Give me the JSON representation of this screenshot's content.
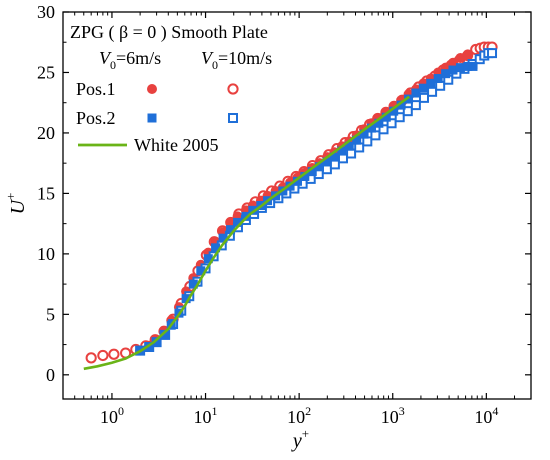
{
  "chart_data": {
    "type": "scatter",
    "xscale": "log",
    "xlim": [
      0.3,
      30000
    ],
    "ylim": [
      -2,
      30
    ],
    "xlabel": "y+",
    "ylabel": "U+",
    "x_ticks": [
      1,
      10,
      100,
      1000,
      10000
    ],
    "x_tick_labels": [
      "10^0",
      "10^1",
      "10^2",
      "10^3",
      "10^4"
    ],
    "y_ticks": [
      0,
      5,
      10,
      15,
      20,
      25,
      30
    ],
    "y_tick_labels": [
      "0",
      "5",
      "10",
      "15",
      "20",
      "25",
      "30"
    ],
    "grid": false,
    "legend_position": "top-left",
    "legend": {
      "title_line1": "ZPG ( β = 0 ) Smooth Plate",
      "col_6": "V0=6m/s",
      "col_10": "V0=10m/s",
      "row_pos1": "Pos.1",
      "row_pos2": "Pos.2",
      "line_label": "White 2005"
    },
    "colors": {
      "pos1": "#e8413f",
      "pos2": "#1f6fd8",
      "white2005": "#6ab417"
    },
    "series": [
      {
        "name": "Pos.1 V0=6m/s",
        "marker": "filled-circle",
        "color": "#e8413f",
        "x": [
          2.0,
          2.5,
          3.0,
          3.6,
          4.3,
          5.2,
          6.2,
          7.4,
          8.9,
          10.7,
          12.8,
          15.4,
          18.5,
          22,
          27,
          32,
          39,
          46,
          56,
          67,
          80,
          96,
          115,
          138,
          165,
          199,
          238,
          286,
          343,
          412,
          494,
          593,
          711,
          853,
          1024,
          1229,
          1475,
          1770,
          2124,
          2548,
          3058,
          3670,
          4404,
          5285,
          6342
        ],
        "y": [
          2.0,
          2.4,
          2.9,
          3.6,
          4.5,
          5.6,
          6.9,
          8.0,
          9.1,
          10.1,
          11.0,
          11.8,
          12.5,
          13.1,
          13.6,
          14.0,
          14.4,
          14.8,
          15.2,
          15.5,
          15.9,
          16.3,
          16.7,
          17.1,
          17.5,
          18.0,
          18.4,
          18.9,
          19.3,
          19.8,
          20.3,
          20.8,
          21.2,
          21.7,
          22.2,
          22.7,
          23.2,
          23.6,
          24.1,
          24.5,
          25.0,
          25.4,
          25.8,
          26.2,
          26.5
        ]
      },
      {
        "name": "Pos.1 V0=10m/s",
        "marker": "open-circle",
        "color": "#e8413f",
        "x": [
          0.6,
          0.8,
          1.05,
          1.4,
          1.8,
          2.3,
          2.9,
          3.6,
          4.5,
          5.5,
          6.8,
          8.3,
          10.2,
          12.4,
          15.2,
          18.6,
          22.7,
          27.8,
          34,
          41.5,
          50.8,
          62.1,
          75.9,
          92.8,
          113,
          139,
          170,
          207,
          253,
          310,
          379,
          463,
          566,
          692,
          846,
          1034,
          1264,
          1545,
          1889,
          2309,
          2823,
          3451,
          4219,
          5157,
          6304,
          7706,
          8600,
          9500,
          10500,
          11500
        ],
        "y": [
          1.4,
          1.6,
          1.7,
          1.8,
          2.1,
          2.4,
          2.9,
          3.6,
          4.6,
          5.9,
          7.3,
          8.6,
          9.9,
          11.0,
          11.9,
          12.6,
          13.3,
          13.8,
          14.3,
          14.8,
          15.2,
          15.6,
          16.0,
          16.4,
          16.8,
          17.3,
          17.7,
          18.2,
          18.7,
          19.2,
          19.7,
          20.2,
          20.7,
          21.2,
          21.7,
          22.2,
          22.7,
          23.3,
          23.8,
          24.3,
          24.7,
          25.2,
          25.6,
          26.0,
          26.4,
          26.9,
          27.0,
          27.1,
          27.1,
          27.1
        ]
      },
      {
        "name": "Pos.2 V0=6m/s",
        "marker": "filled-square",
        "color": "#1f6fd8",
        "x": [
          2.0,
          2.5,
          3.0,
          3.6,
          4.3,
          5.2,
          6.2,
          7.4,
          8.9,
          10.7,
          12.8,
          15.4,
          18.5,
          22,
          27,
          32,
          39,
          46,
          56,
          67,
          80,
          96,
          115,
          138,
          165,
          199,
          238,
          286,
          343,
          412,
          494,
          593,
          711,
          853,
          1024,
          1229,
          1475,
          1770,
          2124,
          2548,
          3058,
          3670,
          4404,
          5285,
          6342,
          7200
        ],
        "y": [
          2.0,
          2.3,
          2.7,
          3.3,
          4.1,
          5.1,
          6.3,
          7.5,
          8.6,
          9.6,
          10.5,
          11.3,
          12.0,
          12.6,
          13.1,
          13.6,
          14.0,
          14.4,
          14.8,
          15.2,
          15.6,
          16.0,
          16.4,
          16.8,
          17.2,
          17.6,
          18.0,
          18.5,
          18.9,
          19.4,
          19.9,
          20.4,
          20.8,
          21.3,
          21.8,
          22.3,
          22.8,
          23.3,
          23.7,
          24.1,
          24.5,
          24.9,
          25.2,
          25.4,
          25.5,
          25.5
        ]
      },
      {
        "name": "Pos.2 V0=10m/s",
        "marker": "open-square",
        "color": "#1f6fd8",
        "x": [
          2.0,
          2.5,
          3.0,
          3.7,
          4.5,
          5.5,
          6.7,
          8.2,
          10.0,
          12.2,
          14.9,
          18.2,
          22.2,
          27,
          33,
          40,
          49,
          60,
          73,
          89,
          109,
          133,
          162,
          198,
          241,
          294,
          359,
          438,
          535,
          653,
          797,
          972,
          1187,
          1448,
          1767,
          2157,
          2632,
          3212,
          3920,
          4784,
          5838,
          7125,
          8500,
          9500,
          10500,
          11500
        ],
        "y": [
          2.0,
          2.3,
          2.7,
          3.3,
          4.2,
          5.3,
          6.5,
          7.7,
          8.8,
          9.8,
          10.7,
          11.5,
          12.2,
          12.8,
          13.3,
          13.8,
          14.2,
          14.6,
          15.0,
          15.4,
          15.8,
          16.2,
          16.6,
          17.0,
          17.4,
          17.9,
          18.3,
          18.8,
          19.3,
          19.8,
          20.3,
          20.8,
          21.3,
          21.8,
          22.3,
          22.9,
          23.4,
          23.9,
          24.4,
          24.9,
          25.3,
          25.7,
          26.1,
          26.4,
          26.6,
          26.6
        ]
      },
      {
        "name": "White 2005",
        "marker": "line",
        "color": "#6ab417",
        "x": [
          0.5,
          0.7,
          1.0,
          1.4,
          2.0,
          2.8,
          4.0,
          5.0,
          6.0,
          7.0,
          8.0,
          10.0,
          12.0,
          15.0,
          20.0,
          25.0,
          30.0,
          40.0,
          50.0,
          70.0,
          100,
          150,
          200,
          300,
          500,
          700,
          1000,
          1500
        ],
        "y": [
          0.5,
          0.7,
          1.0,
          1.35,
          1.95,
          2.7,
          3.8,
          4.8,
          5.7,
          6.6,
          7.3,
          8.6,
          9.6,
          10.7,
          11.9,
          12.7,
          13.3,
          14.0,
          14.6,
          15.4,
          16.3,
          17.3,
          18.0,
          19.0,
          20.3,
          21.1,
          22.0,
          23.0
        ]
      }
    ]
  }
}
